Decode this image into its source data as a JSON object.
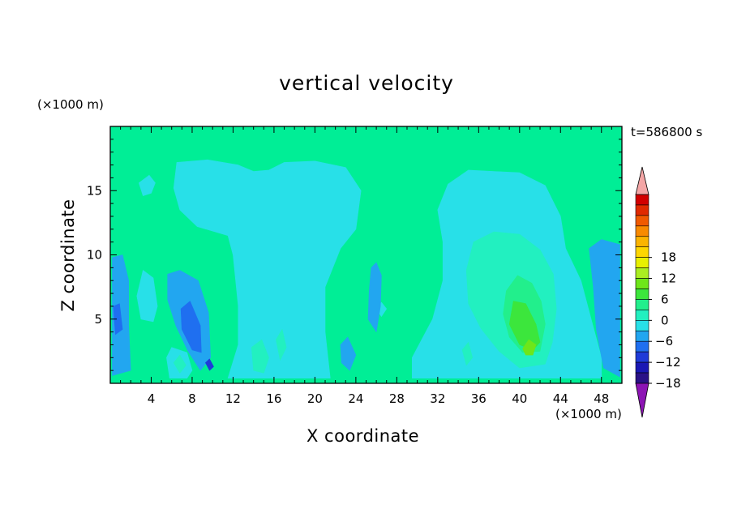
{
  "chart_data": {
    "type": "heatmap",
    "title": "vertical velocity",
    "xlabel": "X coordinate",
    "ylabel": "Z coordinate",
    "x_unit": "(×1000 m)",
    "y_unit": "(×1000 m)",
    "time_label": "t=586800 s",
    "xlim": [
      0,
      50
    ],
    "ylim": [
      0,
      20
    ],
    "x_ticks": [
      4,
      8,
      12,
      16,
      20,
      24,
      28,
      32,
      36,
      40,
      44,
      48
    ],
    "y_ticks": [
      5,
      10,
      15
    ],
    "colorbar": {
      "min": -21,
      "max": 21,
      "step": 3,
      "tick_labels": [
        18,
        12,
        6,
        0,
        -6,
        -12,
        -18
      ],
      "colors": [
        "#6a0aa8",
        "#2a1287",
        "#1a18b4",
        "#1f3bd8",
        "#1f6ff0",
        "#22a6f0",
        "#28e0e8",
        "#22f0c0",
        "#22ef8c",
        "#3ce63c",
        "#6ee61a",
        "#aaee22",
        "#e8f000",
        "#fdd600",
        "#fbb400",
        "#f88a00",
        "#f05a00",
        "#e02a00",
        "#d20000"
      ],
      "over_color": "#f4a6a6",
      "under_color": "#8c14b4",
      "background_color": "#00ee96"
    },
    "regions": [
      {
        "level": 0,
        "value": 1,
        "points": [
          [
            6.5,
            17.2
          ],
          [
            9.5,
            17.4
          ],
          [
            12.5,
            17.0
          ],
          [
            14,
            16.5
          ],
          [
            15.5,
            16.6
          ],
          [
            17,
            17.2
          ],
          [
            20,
            17.3
          ],
          [
            23,
            16.8
          ],
          [
            24.5,
            15.0
          ],
          [
            24,
            12.0
          ],
          [
            22.5,
            10.5
          ],
          [
            21,
            7.5
          ],
          [
            21,
            4.0
          ],
          [
            21.5,
            0.4
          ],
          [
            11.5,
            0.4
          ],
          [
            12.5,
            3.0
          ],
          [
            12.5,
            6.0
          ],
          [
            12,
            10.0
          ],
          [
            11.5,
            11.5
          ],
          [
            8.5,
            12.2
          ],
          [
            6.8,
            13.5
          ],
          [
            6.2,
            15.2
          ]
        ]
      },
      {
        "level": 0,
        "value": 1,
        "points": [
          [
            32,
            13.5
          ],
          [
            33,
            15.5
          ],
          [
            35,
            16.6
          ],
          [
            37.5,
            16.5
          ],
          [
            40,
            16.4
          ],
          [
            42.5,
            15.4
          ],
          [
            44,
            13.0
          ],
          [
            44.5,
            10.5
          ],
          [
            46,
            8.0
          ],
          [
            47,
            5.0
          ],
          [
            48,
            2.0
          ],
          [
            48,
            0.4
          ],
          [
            29.5,
            0.4
          ],
          [
            29.5,
            2.0
          ],
          [
            31.5,
            5.0
          ],
          [
            32.5,
            8.0
          ],
          [
            32.5,
            11.0
          ]
        ]
      },
      {
        "level": 0,
        "value": 1,
        "points": [
          [
            2.6,
            6.8
          ],
          [
            3.2,
            8.8
          ],
          [
            4.2,
            8.2
          ],
          [
            4.6,
            6.0
          ],
          [
            4.2,
            4.8
          ],
          [
            3.0,
            5.0
          ]
        ]
      },
      {
        "level": 0,
        "value": 1,
        "points": [
          [
            2.8,
            15.6
          ],
          [
            3.8,
            16.2
          ],
          [
            4.4,
            15.6
          ],
          [
            4.0,
            14.8
          ],
          [
            3.2,
            14.6
          ]
        ]
      },
      {
        "level": 0,
        "value": 1,
        "points": [
          [
            5.5,
            2.0
          ],
          [
            6.0,
            2.8
          ],
          [
            7.5,
            2.4
          ],
          [
            8.0,
            1.0
          ],
          [
            7.5,
            0.4
          ],
          [
            5.8,
            0.4
          ]
        ]
      },
      {
        "level": 0,
        "value": 1,
        "points": [
          [
            26.0,
            5.8
          ],
          [
            26.5,
            6.3
          ],
          [
            27.0,
            5.8
          ],
          [
            26.5,
            5.2
          ]
        ]
      },
      {
        "level": 1,
        "value": 4,
        "points": [
          [
            34.8,
            8.8
          ],
          [
            35.5,
            11.0
          ],
          [
            37.5,
            11.8
          ],
          [
            40.0,
            11.6
          ],
          [
            42.0,
            10.4
          ],
          [
            43.3,
            8.5
          ],
          [
            43.6,
            5.8
          ],
          [
            43.2,
            3.2
          ],
          [
            42.5,
            1.5
          ],
          [
            40.0,
            1.2
          ],
          [
            38.0,
            2.5
          ],
          [
            36.2,
            4.3
          ],
          [
            35.0,
            6.2
          ]
        ]
      },
      {
        "level": 1,
        "value": 4,
        "points": [
          [
            13.8,
            2.8
          ],
          [
            14.8,
            3.4
          ],
          [
            15.5,
            2.0
          ],
          [
            15.0,
            0.8
          ],
          [
            14.0,
            1.0
          ]
        ]
      },
      {
        "level": 1,
        "value": 4,
        "points": [
          [
            16.2,
            3.4
          ],
          [
            16.8,
            4.2
          ],
          [
            17.2,
            2.8
          ],
          [
            16.6,
            1.8
          ]
        ]
      },
      {
        "level": 1,
        "value": 4,
        "points": [
          [
            6.2,
            1.6
          ],
          [
            6.8,
            2.2
          ],
          [
            7.4,
            1.4
          ],
          [
            6.8,
            0.8
          ]
        ]
      },
      {
        "level": 1,
        "value": 4,
        "points": [
          [
            34.4,
            2.6
          ],
          [
            35.0,
            3.2
          ],
          [
            35.4,
            2.0
          ],
          [
            34.8,
            1.4
          ]
        ]
      },
      {
        "level": 2,
        "value": 7,
        "points": [
          [
            38.4,
            5.4
          ],
          [
            38.7,
            7.2
          ],
          [
            39.8,
            8.4
          ],
          [
            41.2,
            7.8
          ],
          [
            42.1,
            6.4
          ],
          [
            42.5,
            4.6
          ],
          [
            42.0,
            2.5
          ],
          [
            40.3,
            2.4
          ],
          [
            39.0,
            3.6
          ]
        ]
      },
      {
        "level": 3,
        "value": 10,
        "points": [
          [
            39.0,
            4.6
          ],
          [
            39.4,
            6.4
          ],
          [
            40.6,
            6.2
          ],
          [
            41.6,
            4.6
          ],
          [
            42.0,
            3.2
          ],
          [
            41.3,
            2.6
          ],
          [
            40.0,
            3.0
          ]
        ]
      },
      {
        "level": 4,
        "value": 13,
        "points": [
          [
            40.3,
            2.7
          ],
          [
            40.9,
            3.4
          ],
          [
            41.6,
            3.0
          ],
          [
            41.3,
            2.2
          ],
          [
            40.6,
            2.2
          ]
        ]
      },
      {
        "level": -1,
        "value": -2,
        "points": [
          [
            0.2,
            9.8
          ],
          [
            1.2,
            10.0
          ],
          [
            1.8,
            8.0
          ],
          [
            1.8,
            4.5
          ],
          [
            2.0,
            1.0
          ],
          [
            0.2,
            0.6
          ]
        ]
      },
      {
        "level": -1,
        "value": -2,
        "points": [
          [
            5.6,
            8.5
          ],
          [
            6.8,
            8.8
          ],
          [
            8.6,
            8.0
          ],
          [
            9.6,
            5.5
          ],
          [
            9.8,
            2.0
          ],
          [
            8.8,
            1.0
          ],
          [
            7.6,
            2.5
          ],
          [
            6.4,
            4.5
          ],
          [
            5.6,
            6.5
          ]
        ]
      },
      {
        "level": -1,
        "value": -2,
        "points": [
          [
            25.5,
            9.0
          ],
          [
            26.0,
            9.4
          ],
          [
            26.5,
            8.4
          ],
          [
            26.4,
            6.0
          ],
          [
            26.0,
            4.0
          ],
          [
            25.2,
            5.0
          ],
          [
            25.3,
            7.2
          ]
        ]
      },
      {
        "level": -1,
        "value": -2,
        "points": [
          [
            46.8,
            10.5
          ],
          [
            48.0,
            11.2
          ],
          [
            49.8,
            10.8
          ],
          [
            49.8,
            0.5
          ],
          [
            48.2,
            1.2
          ],
          [
            47.5,
            4.2
          ],
          [
            47.2,
            7.5
          ]
        ]
      },
      {
        "level": -1,
        "value": -2,
        "points": [
          [
            22.5,
            3.0
          ],
          [
            23.2,
            3.6
          ],
          [
            24.0,
            2.2
          ],
          [
            23.4,
            1.0
          ],
          [
            22.6,
            1.6
          ]
        ]
      },
      {
        "level": -2,
        "value": -5,
        "points": [
          [
            6.9,
            5.8
          ],
          [
            7.8,
            6.4
          ],
          [
            8.8,
            4.5
          ],
          [
            8.9,
            2.4
          ],
          [
            8.0,
            2.6
          ],
          [
            7.0,
            4.2
          ]
        ]
      },
      {
        "level": -2,
        "value": -5,
        "points": [
          [
            0.3,
            6.0
          ],
          [
            0.9,
            6.2
          ],
          [
            1.2,
            4.2
          ],
          [
            0.5,
            3.8
          ]
        ]
      },
      {
        "level": -3,
        "value": -8,
        "points": [
          [
            9.3,
            1.6
          ],
          [
            9.7,
            1.9
          ],
          [
            10.1,
            1.3
          ],
          [
            9.7,
            1.0
          ]
        ]
      }
    ]
  }
}
